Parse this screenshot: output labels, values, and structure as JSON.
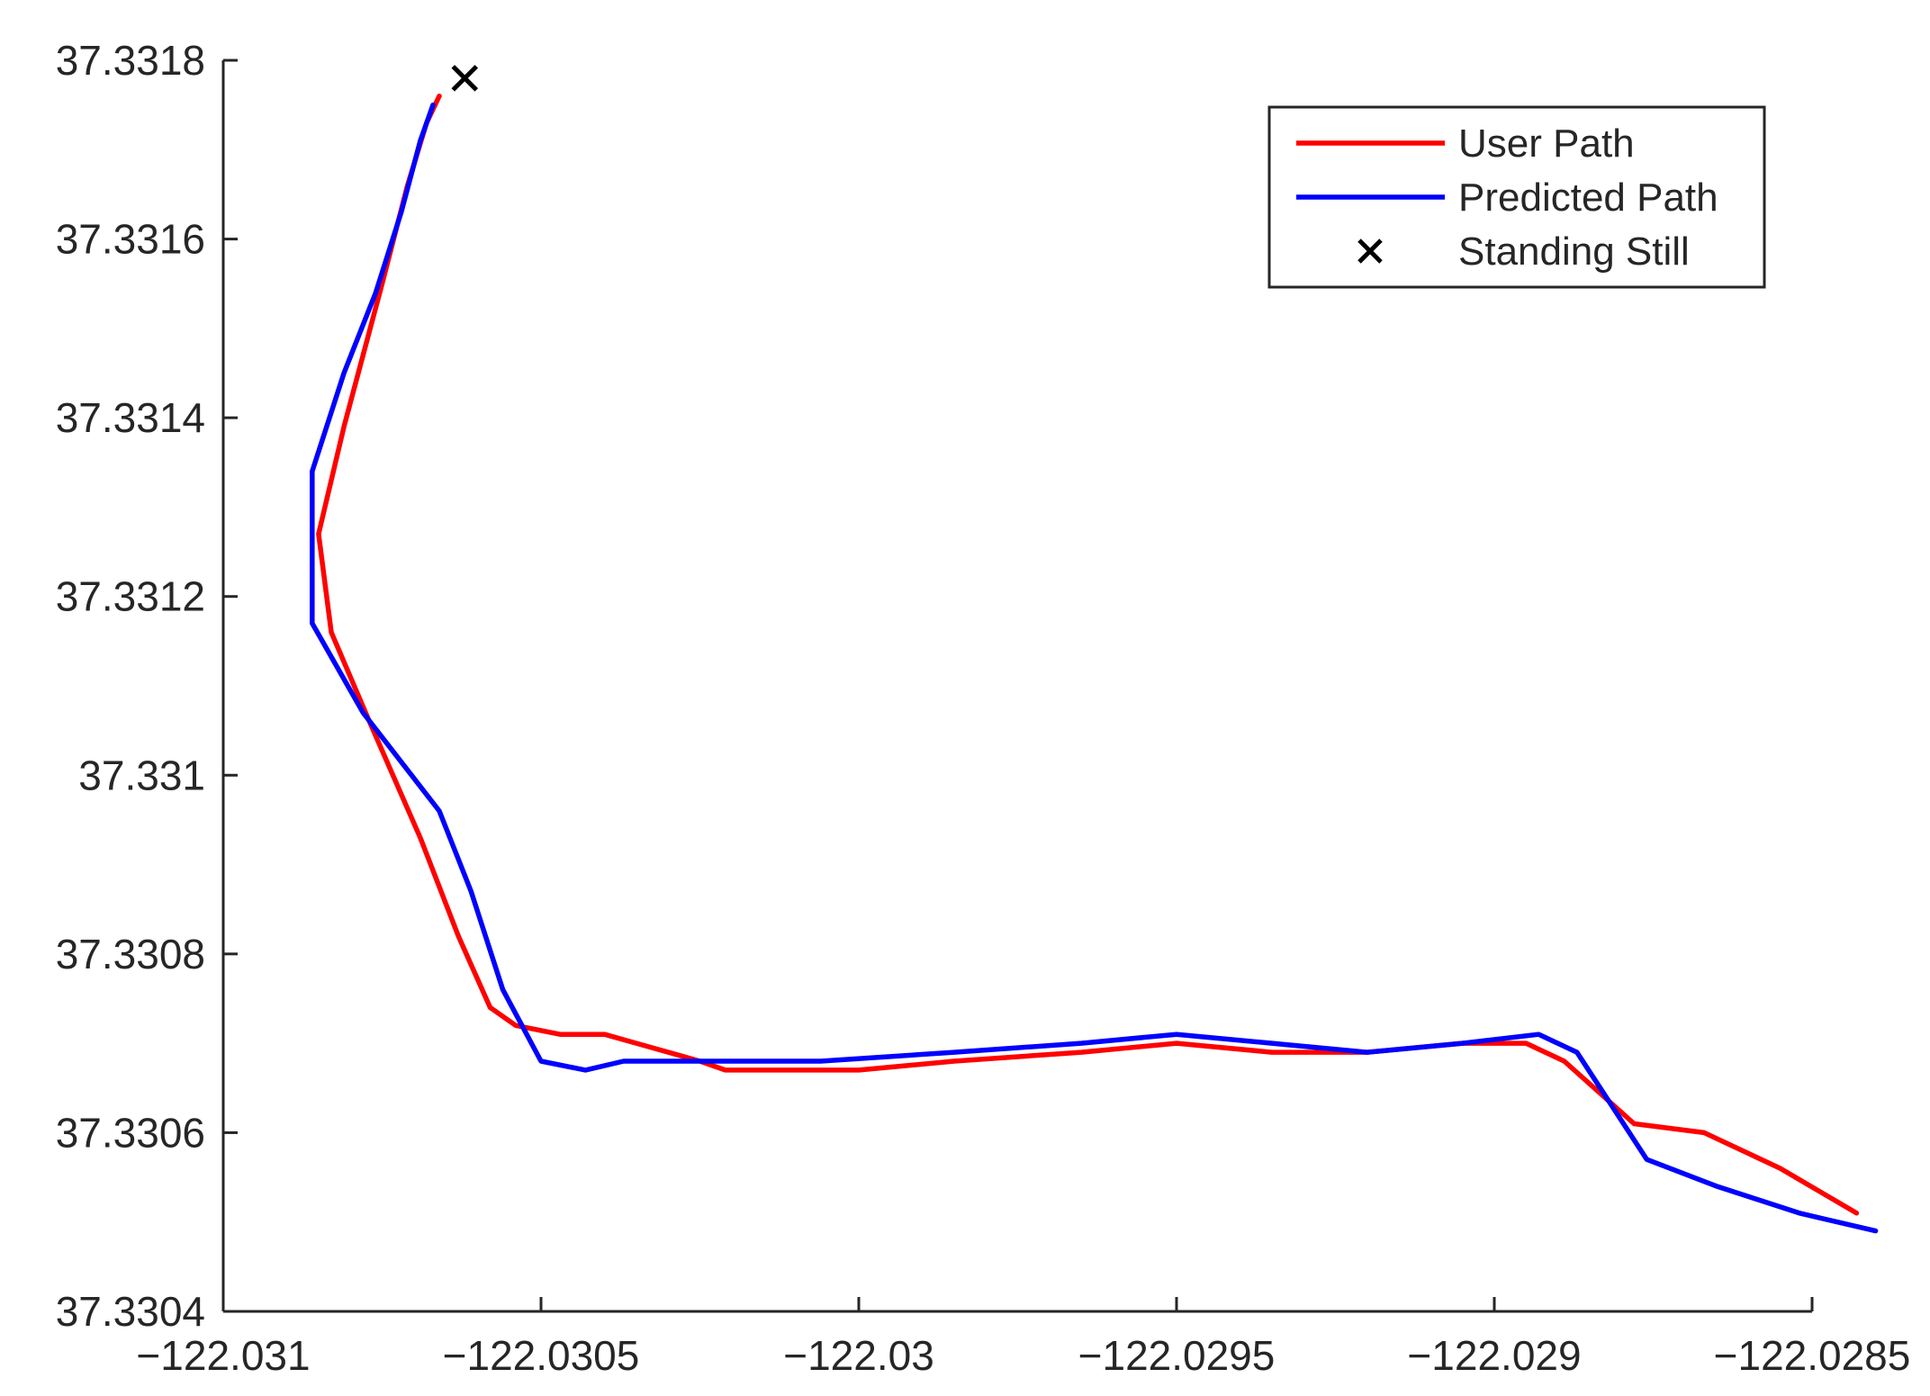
{
  "chart_data": {
    "type": "line",
    "title": "",
    "xlabel": "",
    "ylabel": "",
    "xlim": [
      -122.031,
      -122.0285
    ],
    "ylim": [
      37.3304,
      37.3318
    ],
    "x_ticks": [
      -122.031,
      -122.0305,
      -122.03,
      -122.0295,
      -122.029,
      -122.0285
    ],
    "x_tick_labels": [
      "−122.031",
      "−122.0305",
      "−122.03",
      "−122.0295",
      "−122.029",
      "−122.0285"
    ],
    "y_ticks": [
      37.3304,
      37.3306,
      37.3308,
      37.331,
      37.3312,
      37.3314,
      37.3316,
      37.3318
    ],
    "y_tick_labels": [
      "37.3304",
      "37.3306",
      "37.3308",
      "37.331",
      "37.3312",
      "37.3314",
      "37.3316",
      "37.3318"
    ],
    "grid": false,
    "legend_position": "top-right",
    "series": [
      {
        "name": "User Path",
        "color": "#ff0000",
        "points": [
          [
            -122.03066,
            37.33176
          ],
          [
            -122.03068,
            37.33173
          ],
          [
            -122.03071,
            37.33166
          ],
          [
            -122.03075,
            37.33155
          ],
          [
            -122.03081,
            37.33139
          ],
          [
            -122.03085,
            37.33127
          ],
          [
            -122.03083,
            37.33116
          ],
          [
            -122.03077,
            37.33106
          ],
          [
            -122.03069,
            37.33093
          ],
          [
            -122.03063,
            37.33082
          ],
          [
            -122.03058,
            37.33074
          ],
          [
            -122.03054,
            37.33072
          ],
          [
            -122.03047,
            37.33071
          ],
          [
            -122.0304,
            37.33071
          ],
          [
            -122.03035,
            37.3307
          ],
          [
            -122.03025,
            37.33068
          ],
          [
            -122.03021,
            37.33067
          ],
          [
            -122.03016,
            37.33067
          ],
          [
            -122.03,
            37.33067
          ],
          [
            -122.02985,
            37.33068
          ],
          [
            -122.02965,
            37.33069
          ],
          [
            -122.0295,
            37.3307
          ],
          [
            -122.02935,
            37.33069
          ],
          [
            -122.0292,
            37.33069
          ],
          [
            -122.02905,
            37.3307
          ],
          [
            -122.02895,
            37.3307
          ],
          [
            -122.02889,
            37.33068
          ],
          [
            -122.02878,
            37.33061
          ],
          [
            -122.02867,
            37.3306
          ],
          [
            -122.02855,
            37.33056
          ],
          [
            -122.02843,
            37.33051
          ]
        ]
      },
      {
        "name": "Predicted Path",
        "color": "#0000ff",
        "points": [
          [
            -122.03067,
            37.33175
          ],
          [
            -122.03069,
            37.33171
          ],
          [
            -122.03072,
            37.33163
          ],
          [
            -122.03076,
            37.33154
          ],
          [
            -122.03081,
            37.33145
          ],
          [
            -122.03086,
            37.33134
          ],
          [
            -122.03086,
            37.33117
          ],
          [
            -122.03078,
            37.33107
          ],
          [
            -122.03066,
            37.33096
          ],
          [
            -122.03061,
            37.33087
          ],
          [
            -122.03056,
            37.33076
          ],
          [
            -122.0305,
            37.33068
          ],
          [
            -122.03043,
            37.33067
          ],
          [
            -122.03037,
            37.33068
          ],
          [
            -122.03025,
            37.33068
          ],
          [
            -122.03019,
            37.33068
          ],
          [
            -122.03006,
            37.33068
          ],
          [
            -122.02985,
            37.33069
          ],
          [
            -122.02965,
            37.3307
          ],
          [
            -122.0295,
            37.33071
          ],
          [
            -122.02935,
            37.3307
          ],
          [
            -122.0292,
            37.33069
          ],
          [
            -122.02905,
            37.3307
          ],
          [
            -122.02893,
            37.33071
          ],
          [
            -122.02887,
            37.33069
          ],
          [
            -122.02876,
            37.33057
          ],
          [
            -122.02865,
            37.33054
          ],
          [
            -122.02852,
            37.33051
          ],
          [
            -122.0284,
            37.33049
          ]
        ]
      }
    ],
    "markers": [
      {
        "name": "Standing Still",
        "symbol": "x",
        "color": "#000000",
        "points": [
          [
            -122.03062,
            37.33178
          ]
        ]
      }
    ]
  }
}
